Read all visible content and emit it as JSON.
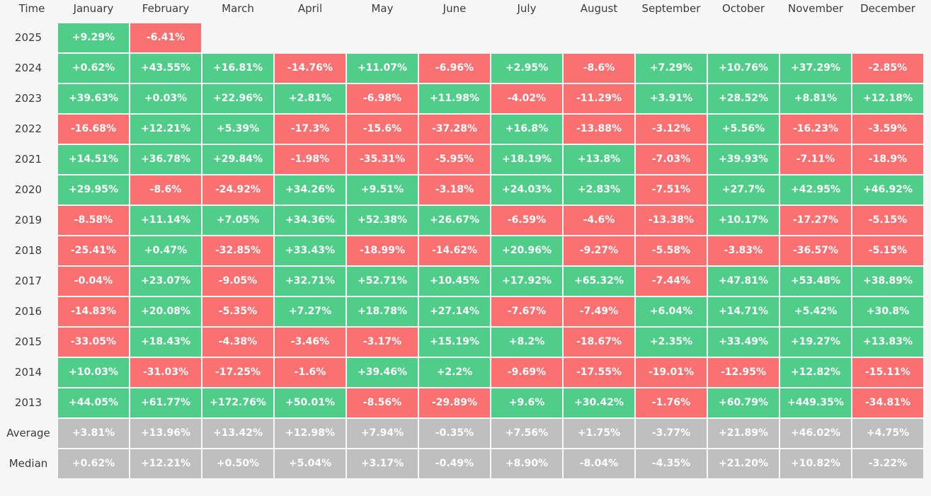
{
  "chart_data": {
    "type": "heatmap",
    "corner_label": "Time",
    "columns": [
      "January",
      "February",
      "March",
      "April",
      "May",
      "June",
      "July",
      "August",
      "September",
      "October",
      "November",
      "December"
    ],
    "rows": [
      {
        "label": "2025",
        "kind": "year",
        "values": [
          "+9.29%",
          "-6.41%",
          null,
          null,
          null,
          null,
          null,
          null,
          null,
          null,
          null,
          null
        ]
      },
      {
        "label": "2024",
        "kind": "year",
        "values": [
          "+0.62%",
          "+43.55%",
          "+16.81%",
          "-14.76%",
          "+11.07%",
          "-6.96%",
          "+2.95%",
          "-8.6%",
          "+7.29%",
          "+10.76%",
          "+37.29%",
          "-2.85%"
        ]
      },
      {
        "label": "2023",
        "kind": "year",
        "values": [
          "+39.63%",
          "+0.03%",
          "+22.96%",
          "+2.81%",
          "-6.98%",
          "+11.98%",
          "-4.02%",
          "-11.29%",
          "+3.91%",
          "+28.52%",
          "+8.81%",
          "+12.18%"
        ]
      },
      {
        "label": "2022",
        "kind": "year",
        "values": [
          "-16.68%",
          "+12.21%",
          "+5.39%",
          "-17.3%",
          "-15.6%",
          "-37.28%",
          "+16.8%",
          "-13.88%",
          "-3.12%",
          "+5.56%",
          "-16.23%",
          "-3.59%"
        ]
      },
      {
        "label": "2021",
        "kind": "year",
        "values": [
          "+14.51%",
          "+36.78%",
          "+29.84%",
          "-1.98%",
          "-35.31%",
          "-5.95%",
          "+18.19%",
          "+13.8%",
          "-7.03%",
          "+39.93%",
          "-7.11%",
          "-18.9%"
        ]
      },
      {
        "label": "2020",
        "kind": "year",
        "values": [
          "+29.95%",
          "-8.6%",
          "-24.92%",
          "+34.26%",
          "+9.51%",
          "-3.18%",
          "+24.03%",
          "+2.83%",
          "-7.51%",
          "+27.7%",
          "+42.95%",
          "+46.92%"
        ]
      },
      {
        "label": "2019",
        "kind": "year",
        "values": [
          "-8.58%",
          "+11.14%",
          "+7.05%",
          "+34.36%",
          "+52.38%",
          "+26.67%",
          "-6.59%",
          "-4.6%",
          "-13.38%",
          "+10.17%",
          "-17.27%",
          "-5.15%"
        ]
      },
      {
        "label": "2018",
        "kind": "year",
        "values": [
          "-25.41%",
          "+0.47%",
          "-32.85%",
          "+33.43%",
          "-18.99%",
          "-14.62%",
          "+20.96%",
          "-9.27%",
          "-5.58%",
          "-3.83%",
          "-36.57%",
          "-5.15%"
        ]
      },
      {
        "label": "2017",
        "kind": "year",
        "values": [
          "-0.04%",
          "+23.07%",
          "-9.05%",
          "+32.71%",
          "+52.71%",
          "+10.45%",
          "+17.92%",
          "+65.32%",
          "-7.44%",
          "+47.81%",
          "+53.48%",
          "+38.89%"
        ]
      },
      {
        "label": "2016",
        "kind": "year",
        "values": [
          "-14.83%",
          "+20.08%",
          "-5.35%",
          "+7.27%",
          "+18.78%",
          "+27.14%",
          "-7.67%",
          "-7.49%",
          "+6.04%",
          "+14.71%",
          "+5.42%",
          "+30.8%"
        ]
      },
      {
        "label": "2015",
        "kind": "year",
        "values": [
          "-33.05%",
          "+18.43%",
          "-4.38%",
          "-3.46%",
          "-3.17%",
          "+15.19%",
          "+8.2%",
          "-18.67%",
          "+2.35%",
          "+33.49%",
          "+19.27%",
          "+13.83%"
        ]
      },
      {
        "label": "2014",
        "kind": "year",
        "values": [
          "+10.03%",
          "-31.03%",
          "-17.25%",
          "-1.6%",
          "+39.46%",
          "+2.2%",
          "-9.69%",
          "-17.55%",
          "-19.01%",
          "-12.95%",
          "+12.82%",
          "-15.11%"
        ]
      },
      {
        "label": "2013",
        "kind": "year",
        "values": [
          "+44.05%",
          "+61.77%",
          "+172.76%",
          "+50.01%",
          "-8.56%",
          "-29.89%",
          "+9.6%",
          "+30.42%",
          "-1.76%",
          "+60.79%",
          "+449.35%",
          "-34.81%"
        ]
      },
      {
        "label": "Average",
        "kind": "stat",
        "values": [
          "+3.81%",
          "+13.96%",
          "+13.42%",
          "+12.98%",
          "+7.94%",
          "-0.35%",
          "+7.56%",
          "+1.75%",
          "-3.77%",
          "+21.89%",
          "+46.02%",
          "+4.75%"
        ]
      },
      {
        "label": "Median",
        "kind": "stat",
        "values": [
          "+0.62%",
          "+12.21%",
          "+0.50%",
          "+5.04%",
          "+3.17%",
          "-0.49%",
          "+8.90%",
          "-8.04%",
          "-4.35%",
          "+21.20%",
          "+10.82%",
          "-3.22%"
        ]
      }
    ],
    "colors": {
      "positive": "#50cd89",
      "negative": "#fb7070",
      "stat": "#bfbfbf",
      "text": "#ffffff",
      "label": "#3a3a3a",
      "background": "#f7f7f7"
    }
  }
}
